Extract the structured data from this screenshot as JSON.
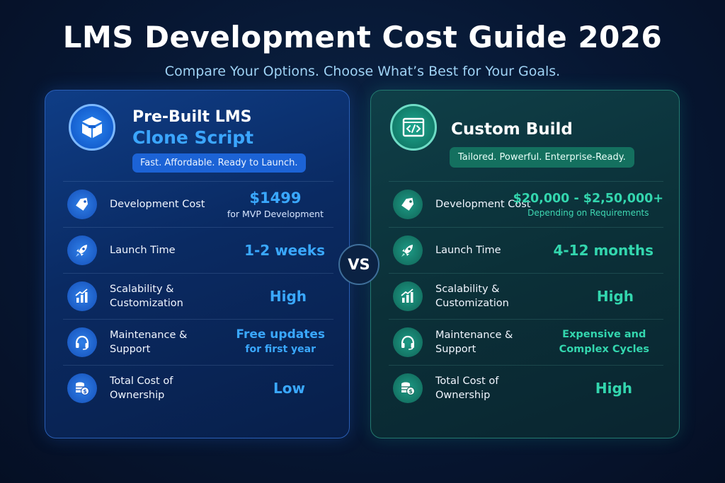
{
  "header": {
    "title": "LMS Development Cost Guide 2026",
    "subtitle": "Compare Your Options. Choose What’s Best for Your Goals."
  },
  "vs_label": "VS",
  "left_card": {
    "icon": "cube-box-icon",
    "heading_line1": "Pre-Built LMS",
    "heading_line2": "Clone Script",
    "tagline": "Fast. Affordable. Ready to Launch.",
    "rows": [
      {
        "icon": "price-tag-icon",
        "label": "Development Cost",
        "value": "$1499",
        "sub": "for MVP Development"
      },
      {
        "icon": "rocket-icon",
        "label": "Launch Time",
        "value": "1-2 weeks"
      },
      {
        "icon": "growth-chart-icon",
        "label": "Scalability &\nCustomization",
        "value": "High"
      },
      {
        "icon": "headset-icon",
        "label": "Maintenance &\nSupport",
        "value": "Free updates",
        "value2": "for first year"
      },
      {
        "icon": "coin-stack-icon",
        "label": "Total Cost of\nOwnership",
        "value": "Low"
      }
    ]
  },
  "right_card": {
    "icon": "code-window-icon",
    "heading": "Custom Build",
    "tagline": "Tailored. Powerful. Enterprise-Ready.",
    "rows": [
      {
        "icon": "price-tag-icon",
        "label": "Development Cost",
        "value": "$20,000 - $2,50,000+",
        "sub": "Depending on Requirements"
      },
      {
        "icon": "rocket-icon",
        "label": "Launch Time",
        "value": "4-12 months"
      },
      {
        "icon": "growth-chart-icon",
        "label": "Scalability &\nCustomization",
        "value": "High"
      },
      {
        "icon": "headset-icon",
        "label": "Maintenance &\nSupport",
        "value": "Expensive and",
        "value2": "Complex Cycles"
      },
      {
        "icon": "coin-stack-icon",
        "label": "Total Cost of\nOwnership",
        "value": "High"
      }
    ]
  },
  "colors": {
    "left_accent": "#3aa8ff",
    "right_accent": "#33d6ae",
    "background": "#071733"
  }
}
